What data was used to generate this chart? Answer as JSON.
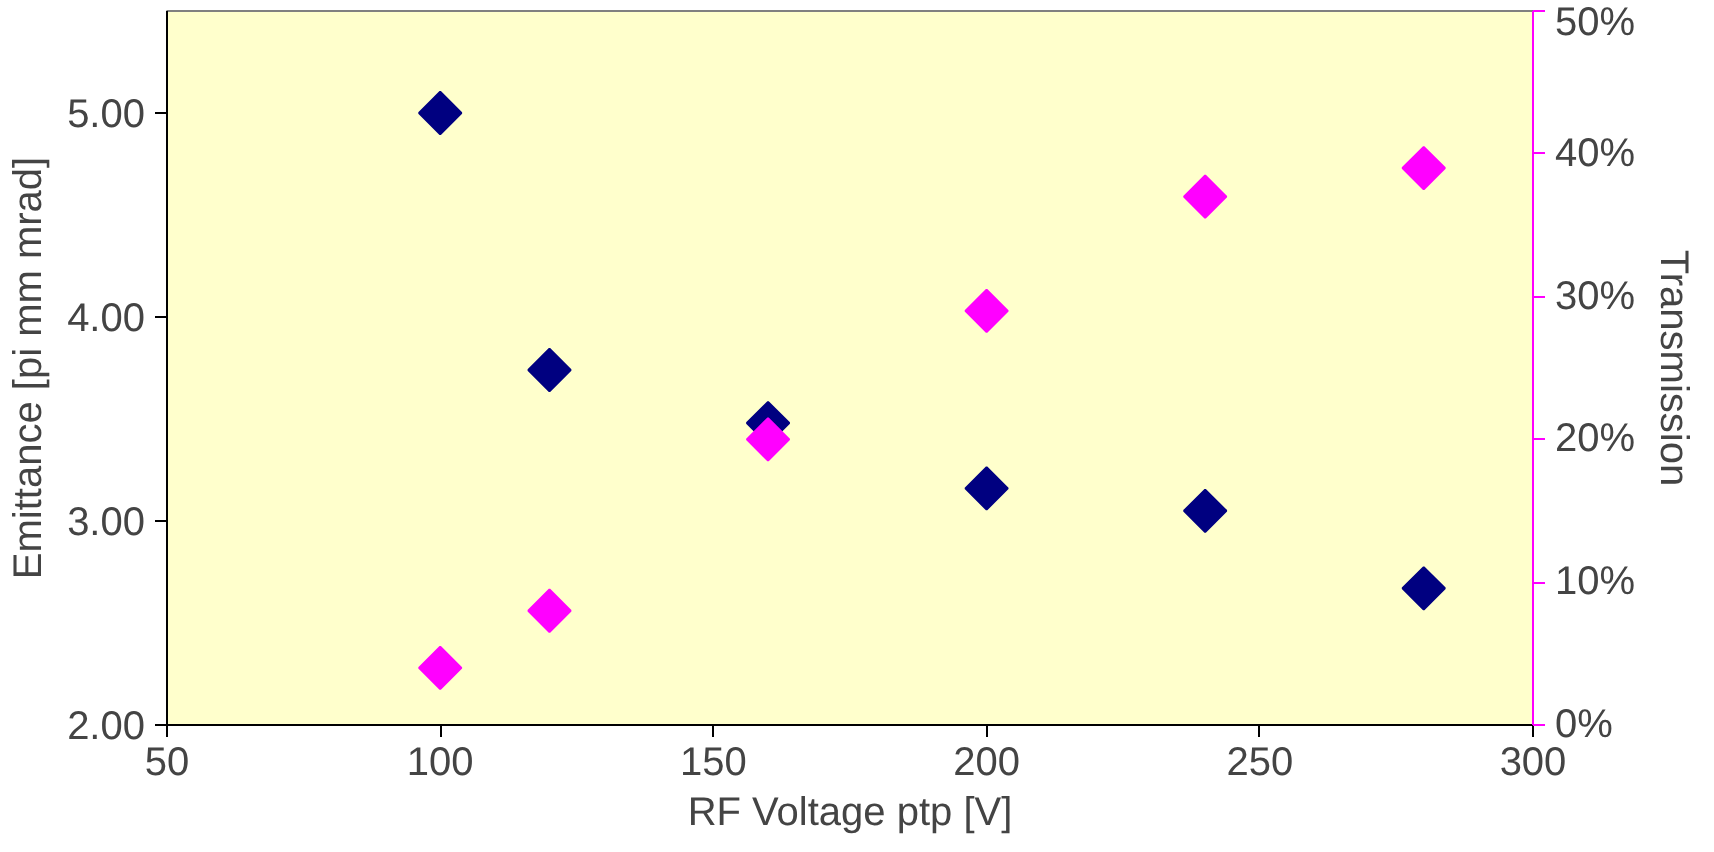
{
  "chart_data": {
    "type": "scatter",
    "xlabel": "RF Voltage ptp [V]",
    "ylabel": "Emittance [pi mm mrad]",
    "y2label": "Transmission",
    "x": [
      100,
      120,
      160,
      200,
      240,
      280
    ],
    "series": [
      {
        "color": "#000080",
        "values": [
          5.0,
          3.74,
          3.48,
          3.16,
          3.05,
          2.67
        ]
      },
      {
        "color": "#ff00ff",
        "values": [
          4,
          8,
          20,
          29,
          37,
          39
        ],
        "axis": "y2"
      }
    ],
    "xlim": [
      50,
      300
    ],
    "xticks": [
      50,
      100,
      150,
      200,
      250,
      300
    ],
    "ylim": [
      2,
      5.5
    ],
    "yticks": [
      {
        "value": 2,
        "label": "2.00"
      },
      {
        "value": 3,
        "label": "3.00"
      },
      {
        "value": 4,
        "label": "4.00"
      },
      {
        "value": 5,
        "label": "5.00"
      }
    ],
    "y2lim": [
      0,
      50
    ],
    "y2ticks": [
      {
        "value": 0,
        "label": "0%"
      },
      {
        "value": 10,
        "label": "10%"
      },
      {
        "value": 20,
        "label": "20%"
      },
      {
        "value": 30,
        "label": "30%"
      },
      {
        "value": 40,
        "label": "40%"
      },
      {
        "value": 50,
        "label": "50%"
      }
    ],
    "marker": "diamond"
  }
}
